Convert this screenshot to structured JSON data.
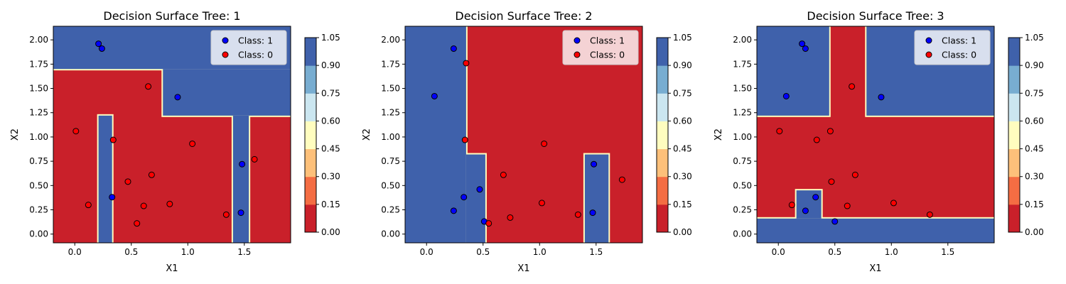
{
  "chart_data": [
    {
      "type": "scatter",
      "title": "Decision Surface Tree: 1",
      "xlabel": "X1",
      "ylabel": "X2",
      "xlim": [
        -0.19,
        1.91
      ],
      "ylim": [
        -0.09,
        2.14
      ],
      "xticks": [
        0.0,
        0.5,
        1.0,
        1.5
      ],
      "yticks": [
        0.0,
        0.25,
        0.5,
        0.75,
        1.0,
        1.25,
        1.5,
        1.75,
        2.0
      ],
      "legend_position": "upper right",
      "surface_class1_regions": [
        [
          -0.19,
          1.7,
          1.91,
          2.14
        ],
        [
          0.78,
          1.22,
          1.91,
          1.7
        ],
        [
          0.21,
          -0.09,
          0.33,
          1.22
        ],
        [
          1.4,
          -0.09,
          1.54,
          1.22
        ]
      ],
      "series": [
        {
          "name": "Class: 1",
          "label": 1,
          "color": "#0000ff",
          "points": [
            [
              0.21,
              1.96
            ],
            [
              0.24,
              1.91
            ],
            [
              0.91,
              1.41
            ],
            [
              0.33,
              0.38
            ],
            [
              1.48,
              0.72
            ],
            [
              1.47,
              0.22
            ]
          ]
        },
        {
          "name": "Class: 0",
          "label": 0,
          "color": "#ff0000",
          "points": [
            [
              0.01,
              1.06
            ],
            [
              0.65,
              1.52
            ],
            [
              0.34,
              0.97
            ],
            [
              1.04,
              0.93
            ],
            [
              0.47,
              0.54
            ],
            [
              0.68,
              0.61
            ],
            [
              0.12,
              0.3
            ],
            [
              0.61,
              0.29
            ],
            [
              0.84,
              0.31
            ],
            [
              0.55,
              0.11
            ],
            [
              1.34,
              0.2
            ],
            [
              1.59,
              0.77
            ]
          ]
        }
      ]
    },
    {
      "type": "scatter",
      "title": "Decision Surface Tree: 2",
      "xlabel": "X1",
      "ylabel": "X2",
      "xlim": [
        -0.19,
        1.91
      ],
      "ylim": [
        -0.09,
        2.14
      ],
      "xticks": [
        0.0,
        0.5,
        1.0,
        1.5
      ],
      "yticks": [
        0.0,
        0.25,
        0.5,
        0.75,
        1.0,
        1.25,
        1.5,
        1.75,
        2.0
      ],
      "legend_position": "upper right",
      "surface_class1_regions": [
        [
          -0.19,
          -0.09,
          0.35,
          2.14
        ],
        [
          0.35,
          -0.09,
          0.52,
          0.82
        ],
        [
          1.4,
          -0.09,
          1.61,
          0.82
        ]
      ],
      "series": [
        {
          "name": "Class: 1",
          "label": 1,
          "color": "#0000ff",
          "points": [
            [
              0.24,
              1.91
            ],
            [
              0.07,
              1.42
            ],
            [
              0.33,
              0.38
            ],
            [
              0.47,
              0.46
            ],
            [
              0.24,
              0.24
            ],
            [
              0.51,
              0.13
            ],
            [
              1.48,
              0.72
            ],
            [
              1.47,
              0.22
            ]
          ]
        },
        {
          "name": "Class: 0",
          "label": 0,
          "color": "#ff0000",
          "points": [
            [
              0.35,
              1.76
            ],
            [
              0.34,
              0.97
            ],
            [
              1.04,
              0.93
            ],
            [
              0.68,
              0.61
            ],
            [
              1.02,
              0.32
            ],
            [
              0.74,
              0.17
            ],
            [
              0.55,
              0.11
            ],
            [
              1.34,
              0.2
            ],
            [
              1.73,
              0.56
            ]
          ]
        }
      ]
    },
    {
      "type": "scatter",
      "title": "Decision Surface Tree: 3",
      "xlabel": "X1",
      "ylabel": "X2",
      "xlim": [
        -0.19,
        1.91
      ],
      "ylim": [
        -0.09,
        2.14
      ],
      "xticks": [
        0.0,
        0.5,
        1.0,
        1.5
      ],
      "yticks": [
        0.0,
        0.25,
        0.5,
        0.75,
        1.0,
        1.25,
        1.5,
        1.75,
        2.0
      ],
      "legend_position": "upper right",
      "surface_class1_regions": [
        [
          -0.19,
          1.22,
          0.45,
          2.14
        ],
        [
          0.78,
          1.22,
          1.91,
          2.14
        ],
        [
          -0.19,
          -0.09,
          1.91,
          0.16
        ],
        [
          0.16,
          0.16,
          0.38,
          0.45
        ]
      ],
      "series": [
        {
          "name": "Class: 1",
          "label": 1,
          "color": "#0000ff",
          "points": [
            [
              0.21,
              1.96
            ],
            [
              0.24,
              1.91
            ],
            [
              0.07,
              1.42
            ],
            [
              0.91,
              1.41
            ],
            [
              0.33,
              0.38
            ],
            [
              0.24,
              0.24
            ],
            [
              0.5,
              0.13
            ]
          ]
        },
        {
          "name": "Class: 0",
          "label": 0,
          "color": "#ff0000",
          "points": [
            [
              0.01,
              1.06
            ],
            [
              0.46,
              1.06
            ],
            [
              0.34,
              0.97
            ],
            [
              0.65,
              1.52
            ],
            [
              0.47,
              0.54
            ],
            [
              0.68,
              0.61
            ],
            [
              0.12,
              0.3
            ],
            [
              0.61,
              0.29
            ],
            [
              1.02,
              0.32
            ],
            [
              1.34,
              0.2
            ]
          ]
        }
      ]
    }
  ],
  "colorbar": {
    "ticks": [
      "0.00",
      "0.15",
      "0.30",
      "0.45",
      "0.60",
      "0.75",
      "0.90",
      "1.05"
    ],
    "band_colors": [
      "#c9202a",
      "#f46d43",
      "#fdc07a",
      "#fffdbf",
      "#cbe6f0",
      "#78add1",
      "#3f61ab"
    ]
  },
  "colors": {
    "class_0_region": "#c9202a",
    "class_1_region": "#3f61ab",
    "boundary": "#fffdbf"
  }
}
